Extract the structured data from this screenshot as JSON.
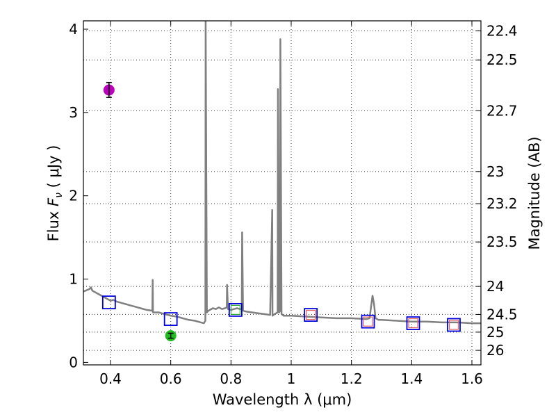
{
  "chart_data": {
    "type": "line",
    "xlabel": "Wavelength  λ (μm)",
    "ylabel": "Flux  F_ν  ( μJy )",
    "ylabel_parts": {
      "prefix": "Flux  ",
      "symbol": "F",
      "subscript": "ν",
      "suffix": "  ( μJy )"
    },
    "y2label": "Magnitude (AB)",
    "xlim": [
      0.31,
      1.63
    ],
    "ylim": [
      -0.03,
      4.1
    ],
    "xticks": [
      0.4,
      0.6,
      0.8,
      1.0,
      1.2,
      1.4,
      1.6
    ],
    "xtick_labels": [
      "0.4",
      "0.6",
      "0.8",
      "1",
      "1.2",
      "1.4",
      "1.6"
    ],
    "yticks": [
      0,
      1,
      2,
      3,
      4
    ],
    "ytick_labels": [
      "0",
      "1",
      "2",
      "3",
      "4"
    ],
    "mag_ticks": [
      22.4,
      22.5,
      22.7,
      23,
      23.2,
      23.5,
      24,
      24.5,
      25,
      26
    ],
    "mag_tick_labels": [
      "22.4",
      "22.5",
      "22.7",
      "23",
      "23.2",
      "23.5",
      "24",
      "24.5",
      "25",
      "26"
    ],
    "grid": true,
    "colors": {
      "spectrum": "#808080",
      "model_box": "#0000dd",
      "observed_inner": "#e06060",
      "observed_green_inner": "#33aa33",
      "point_magenta": "#bb00bb",
      "point_green": "#22bb22",
      "errorbar": "#000000"
    },
    "series": [
      {
        "name": "spectrum",
        "x": [
          0.31,
          0.33,
          0.335,
          0.34,
          0.35,
          0.36,
          0.37,
          0.38,
          0.39,
          0.4,
          0.41,
          0.42,
          0.43,
          0.44,
          0.45,
          0.46,
          0.47,
          0.48,
          0.49,
          0.5,
          0.52,
          0.539,
          0.54,
          0.541,
          0.56,
          0.58,
          0.6,
          0.62,
          0.64,
          0.66,
          0.68,
          0.7,
          0.71,
          0.715,
          0.716,
          0.72,
          0.725,
          0.73,
          0.74,
          0.75,
          0.76,
          0.77,
          0.78,
          0.786,
          0.787,
          0.79,
          0.8,
          0.81,
          0.82,
          0.83,
          0.836,
          0.837,
          0.84,
          0.85,
          0.87,
          0.89,
          0.91,
          0.93,
          0.937,
          0.938,
          0.945,
          0.955,
          0.956,
          0.96,
          0.963,
          0.964,
          0.968,
          0.975,
          1.0,
          1.05,
          1.1,
          1.15,
          1.2,
          1.25,
          1.26,
          1.27,
          1.275,
          1.28,
          1.29,
          1.3,
          1.35,
          1.4,
          1.45,
          1.5,
          1.55,
          1.6,
          1.63
        ],
        "y": [
          0.85,
          0.88,
          0.9,
          0.86,
          0.84,
          0.82,
          0.8,
          0.78,
          0.76,
          0.74,
          0.75,
          0.73,
          0.72,
          0.71,
          0.7,
          0.69,
          0.68,
          0.67,
          0.66,
          0.65,
          0.63,
          0.62,
          0.99,
          0.6,
          0.6,
          0.58,
          0.56,
          0.55,
          0.53,
          0.51,
          0.5,
          0.48,
          0.47,
          0.5,
          4.1,
          0.6,
          0.62,
          0.63,
          0.65,
          0.64,
          0.66,
          0.64,
          0.65,
          0.66,
          0.93,
          0.64,
          0.63,
          0.64,
          0.65,
          0.64,
          0.64,
          1.56,
          0.62,
          0.61,
          0.6,
          0.59,
          0.58,
          0.57,
          1.83,
          0.56,
          0.58,
          0.6,
          3.28,
          0.6,
          0.62,
          3.88,
          0.58,
          0.56,
          0.56,
          0.55,
          0.54,
          0.53,
          0.53,
          0.52,
          0.53,
          0.8,
          0.7,
          0.53,
          0.51,
          0.51,
          0.5,
          0.49,
          0.49,
          0.48,
          0.48,
          0.47,
          0.47
        ]
      },
      {
        "name": "model photometry (squares)",
        "x": [
          0.395,
          0.6,
          0.815,
          1.065,
          1.255,
          1.405,
          1.54
        ],
        "y": [
          0.72,
          0.52,
          0.63,
          0.57,
          0.49,
          0.47,
          0.45
        ],
        "inner": [
          false,
          false,
          "green",
          "red",
          "red",
          "red",
          "red"
        ]
      },
      {
        "name": "observed points",
        "x": [
          0.395,
          0.6
        ],
        "y": [
          3.27,
          0.32
        ],
        "yerr": [
          0.09,
          0.03
        ],
        "colors": [
          "#bb00bb",
          "#22bb22"
        ]
      }
    ]
  }
}
